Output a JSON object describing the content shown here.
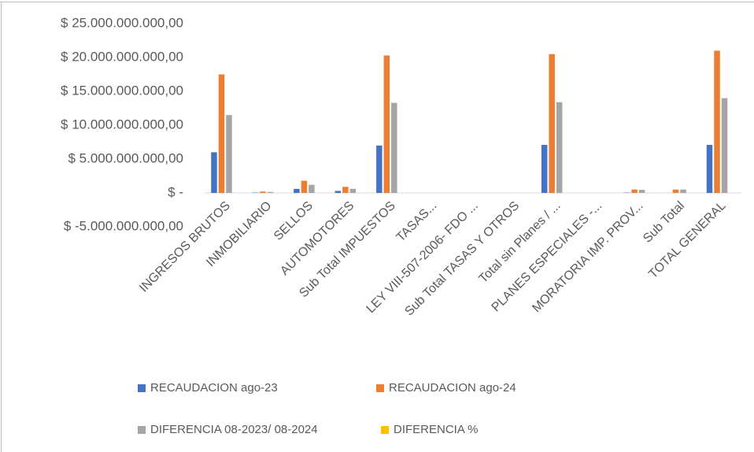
{
  "chart_data": {
    "type": "bar",
    "categories": [
      "INGRESOS BRUTOS",
      "INMOBILIARIO",
      "SELLOS",
      "AUTOMOTORES",
      "Sub Total IMPUESTOS",
      "TASAS...",
      "LEY VIII-507-2006- FDO ...",
      "Sub Total TASAS Y OTROS",
      "Total sin Planes / ...",
      "PLANES ESPECIALES -...",
      "MORATORIA IMP. PROV...",
      "Sub Total",
      "TOTAL GENERAL"
    ],
    "series": [
      {
        "name": "RECAUDACION  ago-23",
        "color": "#4472c4",
        "values": [
          6000000000,
          50000000,
          600000000,
          300000000,
          7000000000,
          0,
          0,
          0,
          7100000000,
          0,
          50000000,
          0,
          7100000000
        ]
      },
      {
        "name": "RECAUDACION  ago-24",
        "color": "#ed7d31",
        "values": [
          17500000000,
          200000000,
          1800000000,
          900000000,
          20300000000,
          0,
          0,
          0,
          20500000000,
          0,
          500000000,
          500000000,
          21000000000
        ]
      },
      {
        "name": "DIFERENCIA 08-2023/ 08-2024",
        "color": "#a5a5a5",
        "values": [
          11500000000,
          150000000,
          1200000000,
          600000000,
          13300000000,
          0,
          0,
          0,
          13400000000,
          0,
          450000000,
          500000000,
          14000000000
        ]
      },
      {
        "name": "DIFERENCIA %",
        "color": "#ffc000",
        "values": [
          0,
          0,
          0,
          0,
          0,
          0,
          0,
          0,
          0,
          0,
          0,
          0,
          0
        ]
      }
    ],
    "ylim": [
      -5000000000,
      25000000000
    ],
    "yticks": [
      {
        "value": -5000000000,
        "label": "$ -5.000.000.000,00"
      },
      {
        "value": 0,
        "label": "$ -"
      },
      {
        "value": 5000000000,
        "label": "$ 5.000.000.000,00"
      },
      {
        "value": 10000000000,
        "label": "$ 10.000.000.000,00"
      },
      {
        "value": 15000000000,
        "label": "$ 15.000.000.000,00"
      },
      {
        "value": 20000000000,
        "label": "$ 20.000.000.000,00"
      },
      {
        "value": 25000000000,
        "label": "$ 25.000.000.000,00"
      }
    ],
    "grid": false,
    "legend": "bottom"
  }
}
